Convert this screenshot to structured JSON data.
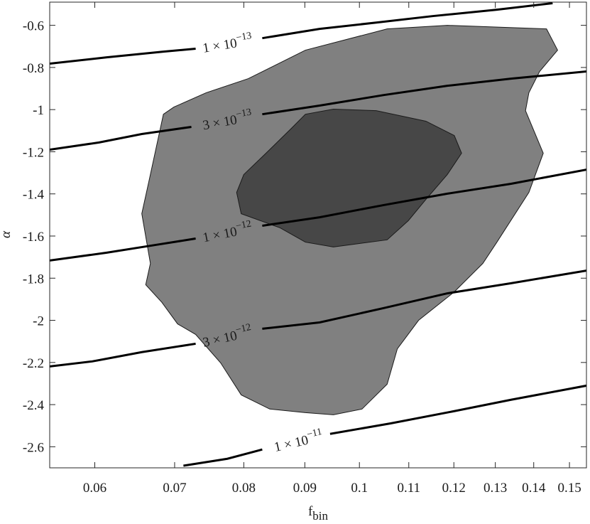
{
  "chart_data": {
    "type": "contour",
    "xlabel": {
      "text": "f",
      "subscript": "bin"
    },
    "ylabel": "α",
    "xscale": "log",
    "xlim": [
      0.055,
      0.155
    ],
    "ylim": [
      -2.7,
      -0.49
    ],
    "xticks": [
      0.06,
      0.07,
      0.08,
      0.09,
      0.1,
      0.11,
      0.12,
      0.13,
      0.14,
      0.15
    ],
    "yticks": [
      -0.6,
      -0.8,
      -1,
      -1.2,
      -1.4,
      -1.6,
      -1.8,
      -2,
      -2.2,
      -2.4,
      -2.6
    ],
    "regions": [
      {
        "color": "#808080",
        "x": [
          0.0683,
          0.0662,
          0.0668,
          0.0657,
          0.0667,
          0.0685,
          0.0699,
          0.0744,
          0.0807,
          0.0901,
          0.1055,
          0.1185,
          0.1435,
          0.1466,
          0.1416,
          0.1387,
          0.1378,
          0.1426,
          0.1387,
          0.1304,
          0.1269,
          0.1201,
          0.1121,
          0.1076,
          0.1055,
          0.1005,
          0.0951,
          0.0901,
          0.0841,
          0.0796,
          0.0765,
          0.0729,
          0.0704
        ],
        "y": [
          -1.915,
          -1.831,
          -1.73,
          -1.494,
          -1.325,
          -1.022,
          -0.988,
          -0.92,
          -0.853,
          -0.718,
          -0.617,
          -0.6,
          -0.617,
          -0.718,
          -0.819,
          -0.92,
          -1.005,
          -1.207,
          -1.393,
          -1.629,
          -1.73,
          -1.865,
          -2.0,
          -2.135,
          -2.303,
          -2.421,
          -2.448,
          -2.438,
          -2.421,
          -2.354,
          -2.202,
          -2.067,
          -2.017
        ]
      },
      {
        "color": "#474747",
        "x": [
          0.08,
          0.0835,
          0.0877,
          0.0901,
          0.0951,
          0.1033,
          0.1137,
          0.1201,
          0.1218,
          0.1185,
          0.1137,
          0.1099,
          0.1055,
          0.0951,
          0.0901,
          0.0858,
          0.0796,
          0.0789
        ],
        "y": [
          -1.308,
          -1.207,
          -1.089,
          -1.022,
          -0.998,
          -1.005,
          -1.055,
          -1.123,
          -1.207,
          -1.308,
          -1.426,
          -1.527,
          -1.618,
          -1.652,
          -1.629,
          -1.561,
          -1.494,
          -1.393
        ]
      }
    ],
    "series": [
      {
        "label": "1 × 10",
        "label_exponent": "−13",
        "color": "#000000",
        "x": [
          0.055,
          0.0614,
          0.0685,
          0.0729,
          0.0775,
          0.0829,
          0.0926,
          0.1033,
          0.1153,
          0.1304,
          0.1452
        ],
        "y": [
          -0.782,
          -0.752,
          -0.725,
          -0.711,
          null,
          -0.661,
          -0.617,
          -0.587,
          -0.556,
          -0.526,
          -0.495
        ]
      },
      {
        "label": "3 × 10",
        "label_exponent": "−13",
        "color": "#000000",
        "x": [
          0.055,
          0.0605,
          0.0657,
          0.0723,
          0.0775,
          0.0829,
          0.0926,
          0.1048,
          0.1185,
          0.134,
          0.155
        ],
        "y": [
          -1.19,
          -1.156,
          -1.116,
          -1.082,
          null,
          -1.022,
          -0.981,
          -0.931,
          -0.887,
          -0.853,
          -0.819
        ]
      },
      {
        "label": "1 × 10",
        "label_exponent": "−12",
        "color": "#000000",
        "x": [
          0.055,
          0.0614,
          0.0675,
          0.0729,
          0.0775,
          0.0829,
          0.0926,
          0.1048,
          0.1185,
          0.134,
          0.155
        ],
        "y": [
          -1.716,
          -1.679,
          -1.642,
          -1.612,
          null,
          -1.551,
          -1.511,
          -1.453,
          -1.399,
          -1.352,
          -1.285
        ]
      },
      {
        "label": "3 × 10",
        "label_exponent": "−12",
        "color": "#000000",
        "x": [
          0.055,
          0.0597,
          0.0657,
          0.0729,
          0.0775,
          0.0829,
          0.0926,
          0.1048,
          0.1185,
          0.134,
          0.155
        ],
        "y": [
          -2.219,
          -2.195,
          -2.151,
          -2.111,
          null,
          -2.04,
          -2.01,
          -1.942,
          -1.872,
          -1.824,
          -1.764
        ]
      },
      {
        "label": "1 × 10",
        "label_exponent": "−11",
        "color": "#000000",
        "x": [
          0.0712,
          0.0775,
          0.0829,
          0.0889,
          0.0945,
          0.1062,
          0.1201,
          0.134,
          0.155
        ],
        "y": [
          -2.69,
          -2.657,
          -2.613,
          null,
          -2.539,
          -2.489,
          -2.431,
          -2.377,
          -2.31
        ]
      }
    ]
  }
}
